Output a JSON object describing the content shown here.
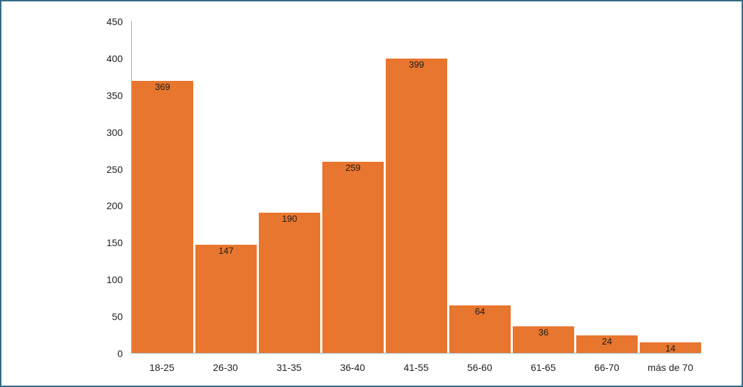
{
  "frame": {
    "border_color": "#336b87",
    "background_color": "#ffffff"
  },
  "chart_data": {
    "type": "bar",
    "title": "",
    "xlabel": "",
    "ylabel": "",
    "categories": [
      "18-25",
      "26-30",
      "31-35",
      "36-40",
      "41-55",
      "56-60",
      "61-65",
      "66-70",
      "más de 70"
    ],
    "values": [
      369,
      147,
      190,
      259,
      399,
      64,
      36,
      24,
      14
    ],
    "bar_color": "#e8762e",
    "value_label_color": "#1a1a1a",
    "axis_line_color": "#a6a6a6",
    "ylim": [
      0,
      450
    ],
    "yticks": [
      0,
      50,
      100,
      150,
      200,
      250,
      300,
      350,
      400,
      450
    ],
    "grid": false,
    "legend": false
  }
}
